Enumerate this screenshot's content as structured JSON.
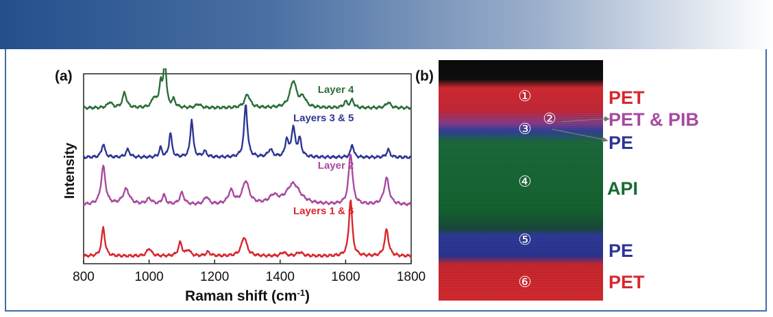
{
  "panel_a": {
    "label": "(a)"
  },
  "panel_b": {
    "label": "(b)"
  },
  "chart_data": {
    "type": "line",
    "title": "",
    "xlabel_main": "Raman shift (cm",
    "xlabel_sup": "-1",
    "xlabel_end": ")",
    "ylabel": "Intensity",
    "xlim": [
      800,
      1800
    ],
    "x_ticks": [
      800,
      1000,
      1200,
      1400,
      1600,
      1800
    ],
    "offset_range": [
      0,
      100
    ],
    "series": [
      {
        "name": "Layer 4",
        "color": "#2a6e3a",
        "offset": 82,
        "peaks": [
          [
            880,
            3,
            8
          ],
          [
            925,
            8,
            7
          ],
          [
            1015,
            5,
            8
          ],
          [
            1035,
            12,
            5
          ],
          [
            1048,
            25,
            5
          ],
          [
            1075,
            4,
            6
          ],
          [
            1150,
            2,
            8
          ],
          [
            1300,
            7,
            10
          ],
          [
            1440,
            14,
            12
          ],
          [
            1470,
            5,
            10
          ],
          [
            1600,
            3,
            7
          ],
          [
            1620,
            4,
            6
          ],
          [
            1730,
            3,
            8
          ]
        ],
        "label_pos": [
          1625,
          90
        ]
      },
      {
        "name": "Layers 3 & 5",
        "color": "#2c3594",
        "offset": 56,
        "peaks": [
          [
            860,
            7,
            6
          ],
          [
            935,
            4,
            7
          ],
          [
            1035,
            5,
            5
          ],
          [
            1065,
            13,
            5
          ],
          [
            1130,
            20,
            5
          ],
          [
            1170,
            3,
            7
          ],
          [
            1295,
            28,
            6
          ],
          [
            1370,
            4,
            8
          ],
          [
            1420,
            9,
            5
          ],
          [
            1440,
            15,
            7
          ],
          [
            1460,
            9,
            6
          ],
          [
            1620,
            7,
            5
          ],
          [
            1730,
            4,
            6
          ]
        ],
        "label_pos": [
          1625,
          75
        ]
      },
      {
        "name": "Layer 2",
        "color": "#a849a0",
        "offset": 31,
        "peaks": [
          [
            860,
            20,
            8
          ],
          [
            930,
            8,
            12
          ],
          [
            1000,
            3,
            10
          ],
          [
            1045,
            5,
            6
          ],
          [
            1100,
            6,
            8
          ],
          [
            1175,
            4,
            8
          ],
          [
            1250,
            7,
            10
          ],
          [
            1295,
            12,
            12
          ],
          [
            1380,
            4,
            15
          ],
          [
            1440,
            11,
            25
          ],
          [
            1615,
            27,
            7
          ],
          [
            1725,
            14,
            9
          ]
        ],
        "label_pos": [
          1625,
          50
        ]
      },
      {
        "name": "Layers 1 & 6",
        "color": "#d7272d",
        "offset": 4,
        "peaks": [
          [
            860,
            15,
            6
          ],
          [
            1000,
            4,
            8
          ],
          [
            1095,
            7,
            7
          ],
          [
            1120,
            3,
            7
          ],
          [
            1180,
            2,
            8
          ],
          [
            1290,
            10,
            10
          ],
          [
            1410,
            2,
            8
          ],
          [
            1460,
            2,
            10
          ],
          [
            1615,
            30,
            6
          ],
          [
            1725,
            14,
            7
          ]
        ],
        "label_pos": [
          1625,
          26
        ]
      }
    ]
  },
  "image_b": {
    "layers": [
      {
        "number": "①",
        "material": "PET",
        "color": "#d7272d"
      },
      {
        "number": "②",
        "material": "PET & PIB",
        "color": "#a849a0"
      },
      {
        "number": "③",
        "material": "PE",
        "color": "#2c3594"
      },
      {
        "number": "④",
        "material": "API",
        "color": "#1a6a33"
      },
      {
        "number": "⑤",
        "material": "PE",
        "color": "#2c3594"
      },
      {
        "number": "⑥",
        "material": "PET",
        "color": "#d7272d"
      }
    ]
  }
}
